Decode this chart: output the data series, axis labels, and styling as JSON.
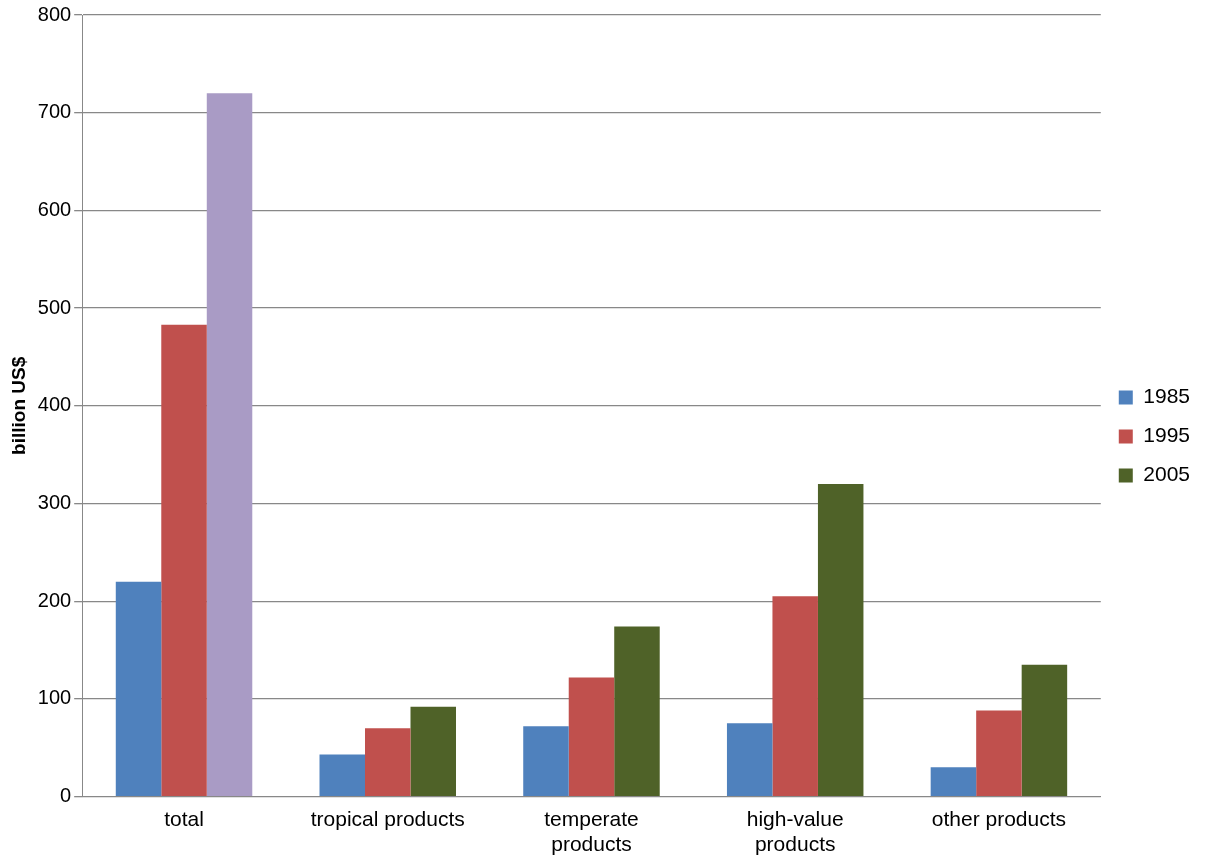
{
  "chart_data": {
    "type": "bar",
    "ylabel": "billion US$",
    "categories": [
      "total",
      "tropical products",
      "temperate products",
      "high-value products",
      "other products"
    ],
    "series": [
      {
        "name": "1985",
        "color": "#4f81bd",
        "values": [
          220,
          43,
          72,
          75,
          30
        ]
      },
      {
        "name": "1995",
        "color": "#c0504d",
        "values": [
          483,
          70,
          122,
          205,
          88
        ]
      },
      {
        "name": "2005",
        "color": "#4f6228",
        "colors": [
          "#a99bc5",
          "#4f6228",
          "#4f6228",
          "#4f6228",
          "#4f6228"
        ],
        "values": [
          720,
          92,
          174,
          320,
          135
        ]
      }
    ],
    "ylim": [
      0,
      800
    ],
    "yticks": [
      0,
      100,
      200,
      300,
      400,
      500,
      600,
      700,
      800
    ],
    "grid": "y",
    "legend": "right"
  }
}
